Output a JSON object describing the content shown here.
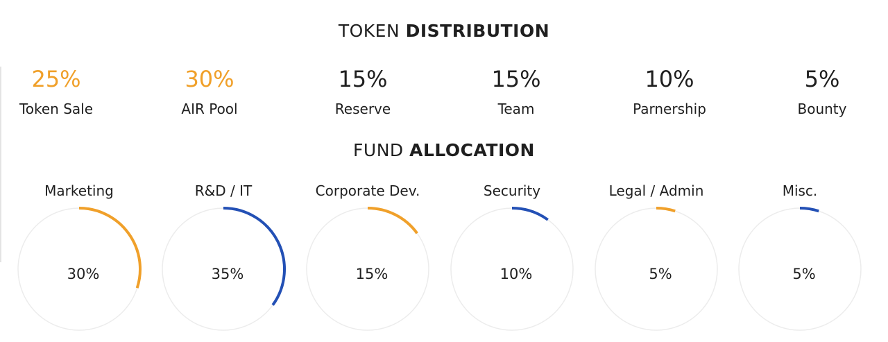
{
  "token_section": {
    "title_light": "TOKEN",
    "title_strong": "DISTRIBUTION"
  },
  "fund_section": {
    "title_light": "FUND",
    "title_strong": "ALLOCATION"
  },
  "colors": {
    "orange": "#f0a02a",
    "blue": "#2350b5",
    "dark_text": "#1f1f1f",
    "track": "#ececec"
  },
  "chart_data": [
    {
      "type": "table",
      "title": "TOKEN DISTRIBUTION",
      "categories": [
        "Token Sale",
        "AIR Pool",
        "Reserve",
        "Team",
        "Parnership",
        "Bounty"
      ],
      "values": [
        25,
        30,
        15,
        15,
        10,
        5
      ],
      "value_labels": [
        "25%",
        "30%",
        "15%",
        "15%",
        "10%",
        "5%"
      ],
      "value_colors": [
        "#f0a02a",
        "#f0a02a",
        "#1f1f1f",
        "#1f1f1f",
        "#1f1f1f",
        "#1f1f1f"
      ]
    },
    {
      "type": "pie",
      "title": "FUND ALLOCATION",
      "categories": [
        "Marketing",
        "R&D / IT",
        "Corporate Dev.",
        "Security",
        "Legal / Admin",
        "Misc."
      ],
      "values": [
        30,
        35,
        15,
        10,
        5,
        5
      ],
      "value_labels": [
        "30%",
        "35%",
        "15%",
        "10%",
        "5%",
        "5%"
      ],
      "arc_colors": [
        "#f0a02a",
        "#2350b5",
        "#f0a02a",
        "#2350b5",
        "#f0a02a",
        "#2350b5"
      ]
    }
  ]
}
